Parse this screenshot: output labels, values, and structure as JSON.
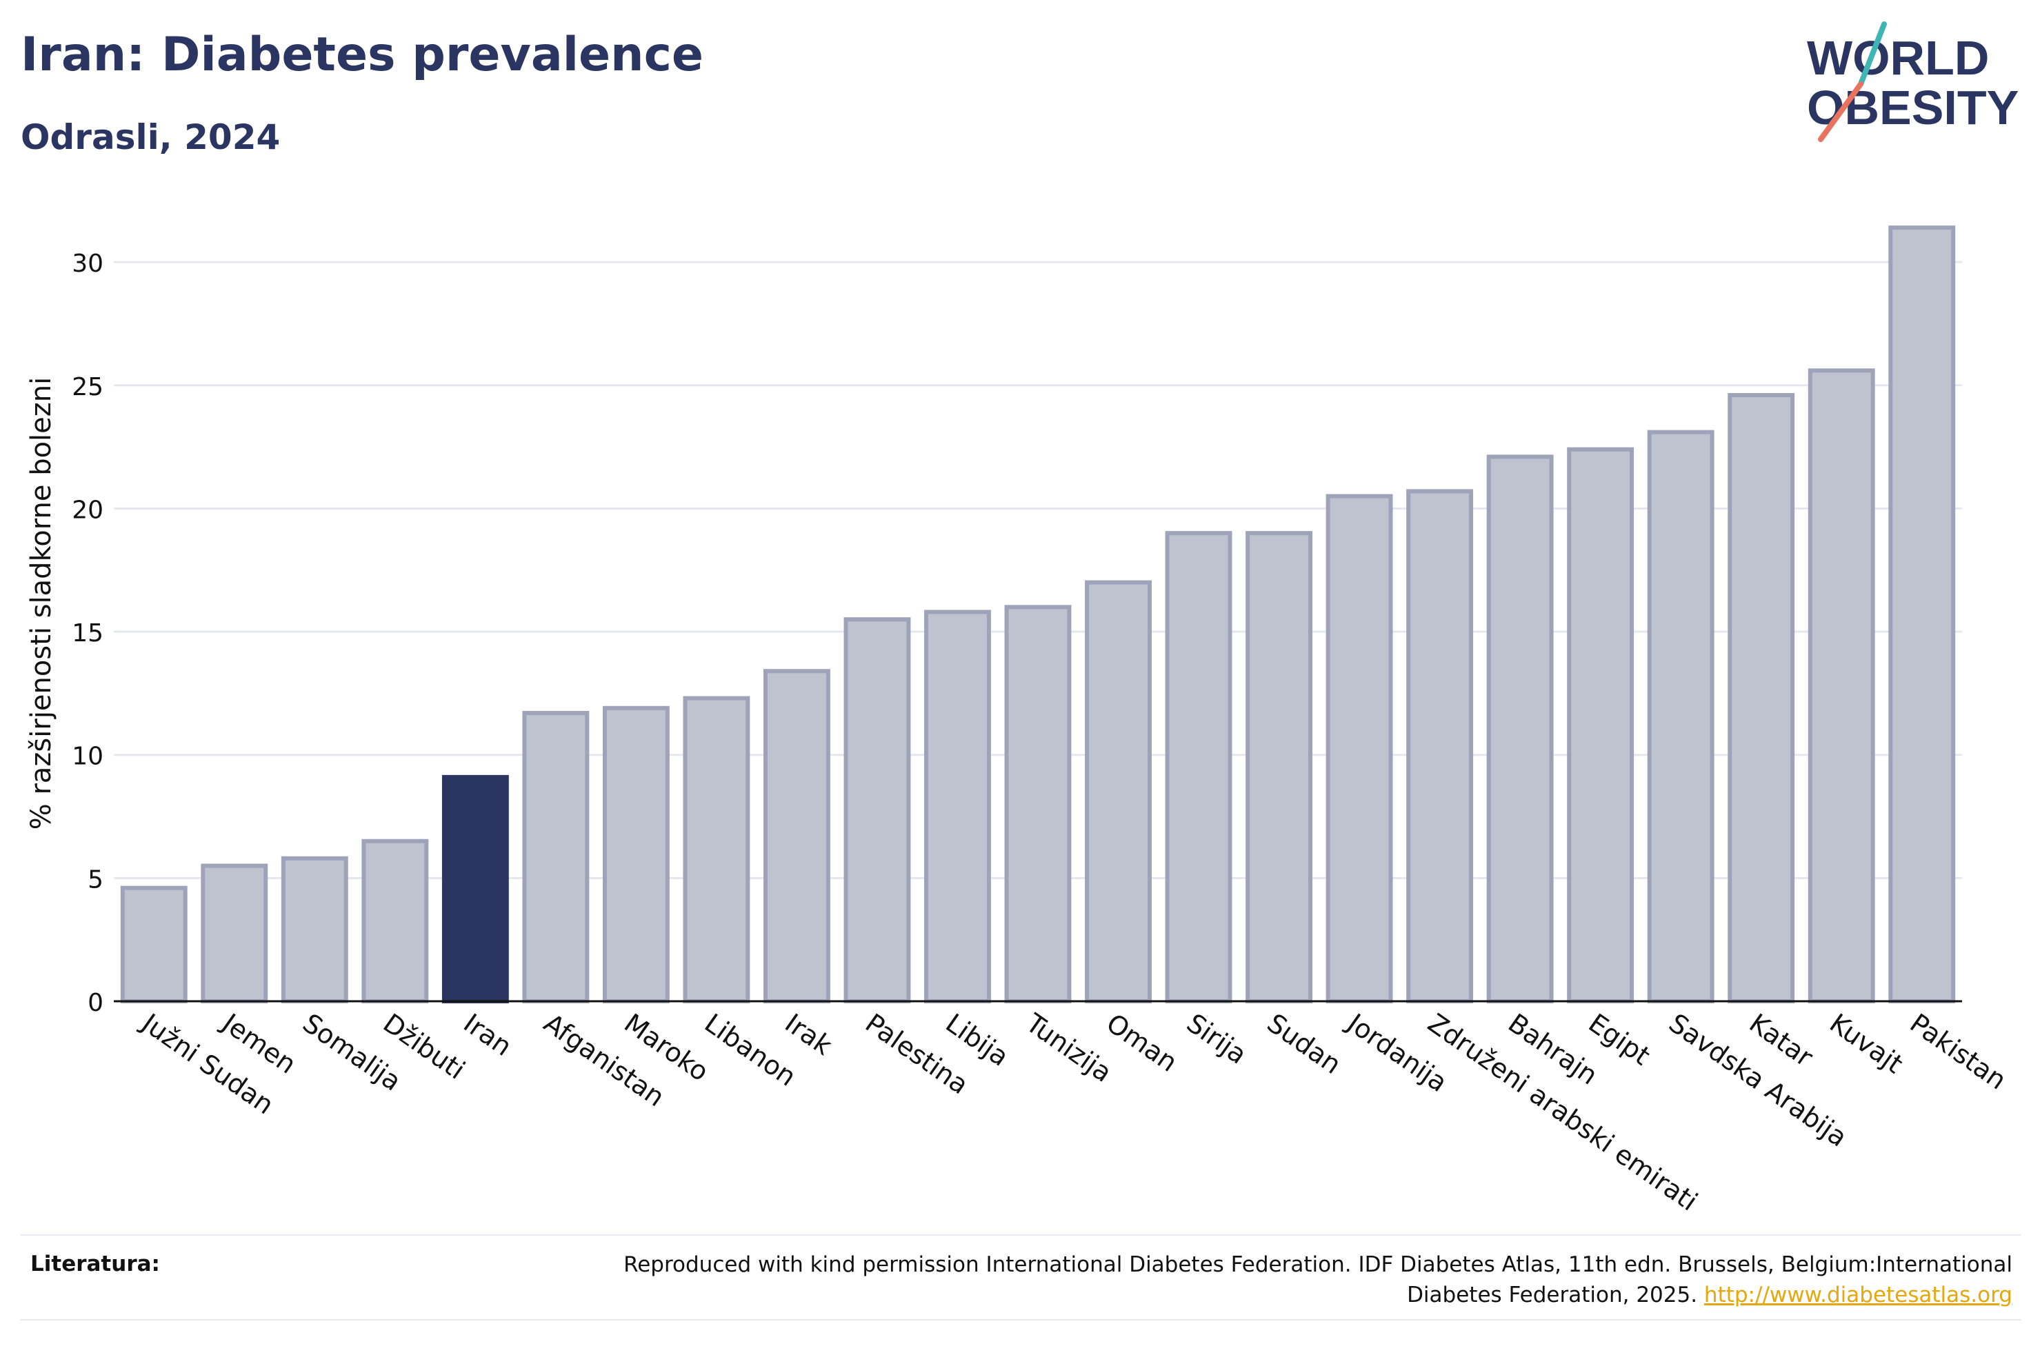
{
  "header": {
    "title": "Iran: Diabetes prevalence",
    "subtitle": "Odrasli, 2024"
  },
  "logo": {
    "line1": "WORLD",
    "line2": "OBESITY",
    "colors": {
      "text": "#2b3561",
      "slash_teal": "#3fb6b3",
      "slash_coral": "#e9735f"
    }
  },
  "colors": {
    "bar_default": "#bfc2cf",
    "bar_border": "#9ea3b9",
    "bar_highlight": "#2b3561",
    "grid": "#e6e7ec",
    "axis": "#111111"
  },
  "chart_data": {
    "type": "bar",
    "title": "Iran: Diabetes prevalence",
    "subtitle": "Odrasli, 2024",
    "xlabel": "",
    "ylabel": "% razširjenosti sladkorne bolezni",
    "ylim": [
      0,
      31.5
    ],
    "yticks": [
      0,
      5,
      10,
      15,
      20,
      25,
      30
    ],
    "grid": true,
    "highlight": "Iran",
    "categories": [
      "Južni Sudan",
      "Jemen",
      "Somalija",
      "Džibuti",
      "Iran",
      "Afganistan",
      "Maroko",
      "Libanon",
      "Irak",
      "Palestina",
      "Libija",
      "Tunizija",
      "Oman",
      "Sirija",
      "Sudan",
      "Jordanija",
      "Združeni arabski emirati",
      "Bahrajn",
      "Egipt",
      "Savdska Arabija",
      "Katar",
      "Kuvajt",
      "Pakistan"
    ],
    "values": [
      4.6,
      5.5,
      5.8,
      6.5,
      9.1,
      11.7,
      11.9,
      12.3,
      13.4,
      15.5,
      15.8,
      16.0,
      17.0,
      19.0,
      19.0,
      20.5,
      20.7,
      22.1,
      22.4,
      23.1,
      24.6,
      25.6,
      31.4
    ]
  },
  "footer": {
    "label": "Literatura:",
    "text": "Reproduced with kind permission International Diabetes Federation. IDF Diabetes Atlas, 11th edn. Brussels, Belgium:International Diabetes Federation, 2025.",
    "link": "http://www.diabetesatlas.org"
  }
}
